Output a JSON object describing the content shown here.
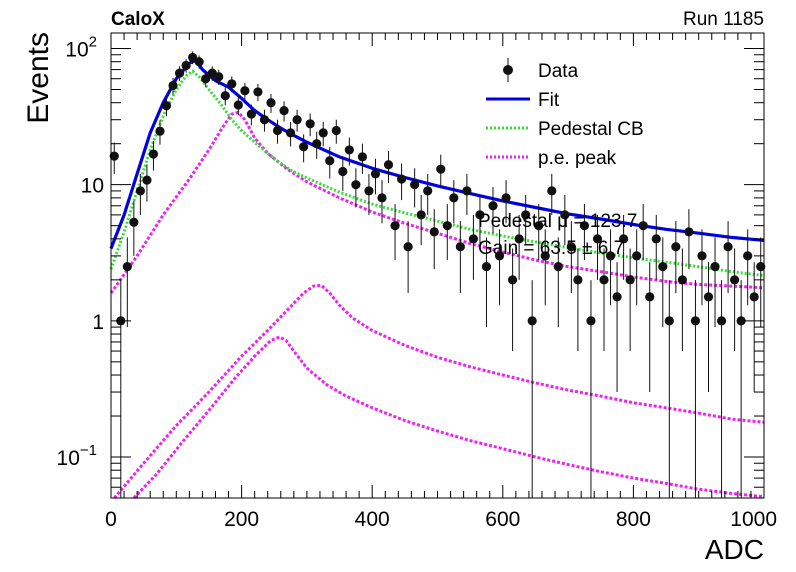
{
  "header": {
    "left": "CaloX",
    "right": "Run 1185"
  },
  "chart_data": {
    "type": "scatter",
    "title": "",
    "xlabel": "ADC",
    "ylabel": "Events",
    "xlim": [
      0,
      1000
    ],
    "ylim": [
      0.05,
      130
    ],
    "y_scale": "log",
    "grid": false,
    "legend_position": "top-right",
    "x_ticks": [
      "0",
      "200",
      "400",
      "600",
      "800",
      "1000"
    ],
    "y_ticks": [
      {
        "value": 100,
        "base": "10",
        "exp": "2"
      },
      {
        "value": 10,
        "base": "10",
        "exp": ""
      },
      {
        "value": 1,
        "base": "1",
        "exp": ""
      },
      {
        "value": 0.1,
        "base": "10",
        "exp": "−1"
      }
    ],
    "legend": [
      {
        "label": "Data",
        "style": "marker"
      },
      {
        "label": "Fit",
        "style": "line",
        "color": "#0000e0"
      },
      {
        "label": "Pedestal CB",
        "style": "dotted",
        "color": "#33dd33"
      },
      {
        "label": "p.e. peak",
        "style": "dotted",
        "color": "#ee22ee"
      }
    ],
    "annotations": [
      "Pedestal μ = 123.7",
      "Gain = 63.5 ± 6.7"
    ],
    "series": [
      {
        "name": "Data",
        "color": "#111111",
        "points": [
          [
            5,
            16.2,
            4.2
          ],
          [
            15,
            1.0,
            0.99
          ],
          [
            25,
            2.5,
            1.6
          ],
          [
            35,
            5.3,
            2.3
          ],
          [
            45,
            9.0,
            3.0
          ],
          [
            55,
            10.8,
            3.3
          ],
          [
            65,
            16.8,
            4.1
          ],
          [
            75,
            24.7,
            5.0
          ],
          [
            85,
            38.0,
            6.2
          ],
          [
            95,
            53.5,
            7.3
          ],
          [
            105,
            66.0,
            8.1
          ],
          [
            115,
            75.0,
            8.7
          ],
          [
            125,
            86.0,
            9.3
          ],
          [
            135,
            80.0,
            8.9
          ],
          [
            145,
            60.0,
            7.7
          ],
          [
            155,
            66.0,
            8.1
          ],
          [
            165,
            62.0,
            7.9
          ],
          [
            175,
            45.0,
            6.7
          ],
          [
            185,
            55.0,
            7.4
          ],
          [
            195,
            38.5,
            6.2
          ],
          [
            205,
            49.0,
            7.0
          ],
          [
            215,
            33.0,
            5.7
          ],
          [
            225,
            48.0,
            6.9
          ],
          [
            235,
            30.0,
            5.5
          ],
          [
            245,
            40.0,
            6.3
          ],
          [
            255,
            25.0,
            5.0
          ],
          [
            265,
            35.0,
            5.9
          ],
          [
            275,
            24.0,
            4.9
          ],
          [
            285,
            30.0,
            5.5
          ],
          [
            295,
            19.0,
            4.4
          ],
          [
            305,
            28.0,
            5.3
          ],
          [
            315,
            20.0,
            4.5
          ],
          [
            325,
            24.0,
            4.9
          ],
          [
            335,
            15.0,
            3.9
          ],
          [
            345,
            25.0,
            5.0
          ],
          [
            355,
            12.5,
            3.5
          ],
          [
            365,
            18.0,
            4.2
          ],
          [
            375,
            10.0,
            3.2
          ],
          [
            385,
            16.0,
            4.0
          ],
          [
            395,
            9.0,
            3.0
          ],
          [
            405,
            12.0,
            3.5
          ],
          [
            415,
            8.0,
            2.8
          ],
          [
            425,
            14.0,
            3.7
          ],
          [
            435,
            5.0,
            2.2
          ],
          [
            445,
            11.0,
            3.3
          ],
          [
            455,
            3.5,
            1.9
          ],
          [
            465,
            10.0,
            3.2
          ],
          [
            475,
            6.0,
            2.4
          ],
          [
            485,
            9.0,
            3.0
          ],
          [
            495,
            4.5,
            2.1
          ],
          [
            505,
            13.0,
            3.6
          ],
          [
            515,
            5.0,
            2.2
          ],
          [
            525,
            8.0,
            2.8
          ],
          [
            535,
            3.5,
            1.9
          ],
          [
            545,
            9.0,
            3.0
          ],
          [
            555,
            4.0,
            2.0
          ],
          [
            565,
            6.0,
            2.4
          ],
          [
            575,
            2.5,
            1.6
          ],
          [
            585,
            7.0,
            2.6
          ],
          [
            595,
            3.0,
            1.7
          ],
          [
            605,
            8.0,
            2.8
          ],
          [
            615,
            2.0,
            1.4
          ],
          [
            625,
            4.0,
            2.0
          ],
          [
            635,
            6.0,
            2.4
          ],
          [
            645,
            1.0,
            0.99
          ],
          [
            655,
            5.0,
            2.2
          ],
          [
            665,
            3.0,
            1.7
          ],
          [
            675,
            9.0,
            3.0
          ],
          [
            685,
            2.5,
            1.6
          ],
          [
            695,
            6.0,
            2.4
          ],
          [
            705,
            3.5,
            1.9
          ],
          [
            715,
            2.0,
            1.4
          ],
          [
            725,
            5.0,
            2.2
          ],
          [
            735,
            1.0,
            0.99
          ],
          [
            745,
            4.0,
            2.0
          ],
          [
            755,
            2.0,
            1.4
          ],
          [
            765,
            3.0,
            1.7
          ],
          [
            775,
            1.5,
            1.2
          ],
          [
            785,
            4.0,
            2.0
          ],
          [
            795,
            2.0,
            1.4
          ],
          [
            805,
            3.0,
            1.7
          ],
          [
            815,
            5.0,
            2.2
          ],
          [
            825,
            1.5,
            1.2
          ],
          [
            835,
            4.0,
            2.0
          ],
          [
            845,
            2.5,
            1.6
          ],
          [
            855,
            1.0,
            0.99
          ],
          [
            865,
            3.5,
            1.9
          ],
          [
            875,
            2.0,
            1.4
          ],
          [
            885,
            4.5,
            2.1
          ],
          [
            895,
            1.0,
            0.99
          ],
          [
            905,
            3.0,
            1.7
          ],
          [
            915,
            1.5,
            1.2
          ],
          [
            925,
            2.5,
            1.6
          ],
          [
            935,
            1.0,
            0.99
          ],
          [
            945,
            3.5,
            1.9
          ],
          [
            955,
            2.0,
            1.4
          ],
          [
            965,
            1.0,
            0.99
          ],
          [
            975,
            3.0,
            1.7
          ],
          [
            985,
            1.5,
            1.2
          ],
          [
            995,
            2.5,
            1.6
          ]
        ]
      },
      {
        "name": "Fit",
        "color": "#0000e0",
        "points": [
          [
            0,
            3.4
          ],
          [
            20,
            6.0
          ],
          [
            40,
            12.0
          ],
          [
            60,
            24.0
          ],
          [
            80,
            40.0
          ],
          [
            100,
            60.0
          ],
          [
            120,
            78.0
          ],
          [
            130,
            82.0
          ],
          [
            140,
            70.0
          ],
          [
            160,
            58.0
          ],
          [
            180,
            52.0
          ],
          [
            200,
            43.0
          ],
          [
            220,
            35.0
          ],
          [
            240,
            30.0
          ],
          [
            260,
            26.0
          ],
          [
            280,
            23.0
          ],
          [
            300,
            20.5
          ],
          [
            350,
            16.0
          ],
          [
            400,
            13.2
          ],
          [
            450,
            11.3
          ],
          [
            500,
            9.8
          ],
          [
            550,
            8.6
          ],
          [
            600,
            7.6
          ],
          [
            650,
            6.8
          ],
          [
            700,
            6.1
          ],
          [
            750,
            5.6
          ],
          [
            800,
            5.1
          ],
          [
            850,
            4.7
          ],
          [
            900,
            4.4
          ],
          [
            950,
            4.1
          ],
          [
            1000,
            3.9
          ]
        ]
      },
      {
        "name": "Pedestal CB",
        "color": "#33dd33",
        "points": [
          [
            0,
            2.4
          ],
          [
            20,
            4.5
          ],
          [
            40,
            9.0
          ],
          [
            60,
            18.0
          ],
          [
            80,
            32.0
          ],
          [
            100,
            50.0
          ],
          [
            115,
            63.0
          ],
          [
            125,
            68.0
          ],
          [
            135,
            62.0
          ],
          [
            150,
            50.0
          ],
          [
            170,
            38.0
          ],
          [
            185,
            30.0
          ],
          [
            200,
            25.0
          ],
          [
            225,
            19.5
          ],
          [
            250,
            15.5
          ],
          [
            275,
            12.8
          ],
          [
            300,
            11.2
          ],
          [
            350,
            8.8
          ],
          [
            400,
            7.2
          ],
          [
            450,
            6.2
          ],
          [
            500,
            5.4
          ],
          [
            550,
            4.7
          ],
          [
            600,
            4.2
          ],
          [
            650,
            3.8
          ],
          [
            700,
            3.45
          ],
          [
            750,
            3.15
          ],
          [
            800,
            2.9
          ],
          [
            850,
            2.7
          ],
          [
            900,
            2.5
          ],
          [
            950,
            2.3
          ],
          [
            1000,
            2.15
          ]
        ]
      },
      {
        "name": "p.e. peak 1",
        "color": "#ee22ee",
        "points": [
          [
            0,
            1.6
          ],
          [
            40,
            3.0
          ],
          [
            80,
            6.0
          ],
          [
            120,
            11.0
          ],
          [
            150,
            18.0
          ],
          [
            170,
            26.0
          ],
          [
            185,
            33.0
          ],
          [
            195,
            34.0
          ],
          [
            205,
            30.0
          ],
          [
            220,
            22.0
          ],
          [
            240,
            17.0
          ],
          [
            270,
            13.0
          ],
          [
            300,
            10.5
          ],
          [
            350,
            8.0
          ],
          [
            400,
            6.3
          ],
          [
            450,
            5.2
          ],
          [
            500,
            4.4
          ],
          [
            550,
            3.7
          ],
          [
            600,
            3.2
          ],
          [
            650,
            2.8
          ],
          [
            700,
            2.5
          ],
          [
            750,
            2.3
          ],
          [
            800,
            2.1
          ],
          [
            850,
            1.95
          ],
          [
            900,
            1.85
          ],
          [
            950,
            1.8
          ],
          [
            1000,
            1.75
          ]
        ]
      },
      {
        "name": "p.e. peak 2",
        "color": "#ee22ee",
        "points": [
          [
            35,
            0.045
          ],
          [
            70,
            0.075
          ],
          [
            110,
            0.13
          ],
          [
            150,
            0.22
          ],
          [
            190,
            0.38
          ],
          [
            220,
            0.55
          ],
          [
            245,
            0.72
          ],
          [
            258,
            0.76
          ],
          [
            268,
            0.72
          ],
          [
            280,
            0.6
          ],
          [
            300,
            0.45
          ],
          [
            330,
            0.34
          ],
          [
            360,
            0.28
          ],
          [
            400,
            0.23
          ],
          [
            450,
            0.185
          ],
          [
            500,
            0.155
          ],
          [
            550,
            0.132
          ],
          [
            600,
            0.115
          ],
          [
            650,
            0.1
          ],
          [
            700,
            0.088
          ],
          [
            750,
            0.078
          ],
          [
            800,
            0.07
          ],
          [
            850,
            0.064
          ],
          [
            900,
            0.058
          ],
          [
            950,
            0.054
          ],
          [
            1000,
            0.051
          ]
        ]
      },
      {
        "name": "p.e. peak 3",
        "color": "#ee22ee",
        "points": [
          [
            5,
            0.05
          ],
          [
            50,
            0.09
          ],
          [
            100,
            0.17
          ],
          [
            150,
            0.3
          ],
          [
            200,
            0.55
          ],
          [
            240,
            0.85
          ],
          [
            270,
            1.2
          ],
          [
            295,
            1.6
          ],
          [
            310,
            1.8
          ],
          [
            322,
            1.82
          ],
          [
            335,
            1.6
          ],
          [
            350,
            1.3
          ],
          [
            370,
            1.05
          ],
          [
            400,
            0.85
          ],
          [
            450,
            0.66
          ],
          [
            500,
            0.54
          ],
          [
            550,
            0.46
          ],
          [
            600,
            0.4
          ],
          [
            650,
            0.35
          ],
          [
            700,
            0.31
          ],
          [
            750,
            0.28
          ],
          [
            800,
            0.25
          ],
          [
            850,
            0.23
          ],
          [
            900,
            0.21
          ],
          [
            950,
            0.19
          ],
          [
            1000,
            0.18
          ]
        ]
      }
    ]
  }
}
